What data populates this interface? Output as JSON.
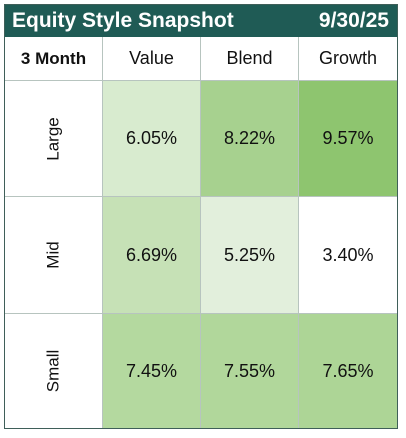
{
  "title": {
    "main": "Equity Style Snapshot",
    "date": "9/30/25"
  },
  "table": {
    "period_label": "3 Month",
    "columns": [
      "Value",
      "Blend",
      "Growth"
    ],
    "rows": [
      {
        "label": "Large",
        "values": [
          "6.05%",
          "8.22%",
          "9.57%"
        ],
        "colors": [
          "#d8ebcf",
          "#a7d18f",
          "#8ec56f"
        ]
      },
      {
        "label": "Mid",
        "values": [
          "6.69%",
          "5.25%",
          "3.40%"
        ],
        "colors": [
          "#c6e1b6",
          "#e2efdc",
          "#ffffff"
        ]
      },
      {
        "label": "Small",
        "values": [
          "7.45%",
          "7.55%",
          "7.65%"
        ],
        "colors": [
          "#b4d99f",
          "#b1d79b",
          "#add596"
        ]
      }
    ]
  }
}
